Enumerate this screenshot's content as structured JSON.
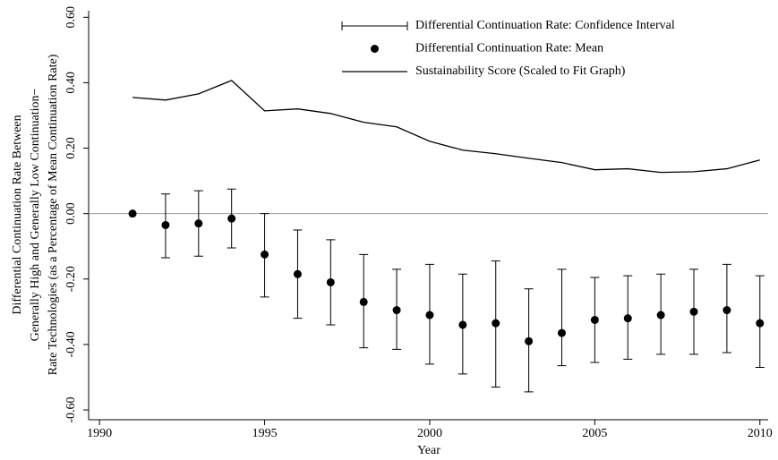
{
  "chart_data": {
    "type": "errorbar",
    "x_label": "Year",
    "y_label": [
      "Differential Continuation Rate Between",
      "Generally High and Generally Low Continuation−",
      "Rate Technologies (as a Percentage of Mean Continuation Rate)"
    ],
    "x": [
      1991,
      1992,
      1993,
      1994,
      1995,
      1996,
      1997,
      1998,
      1999,
      2000,
      2001,
      2002,
      2003,
      2004,
      2005,
      2006,
      2007,
      2008,
      2009,
      2010
    ],
    "xlim": [
      1989.67,
      2010.25
    ],
    "xticks": [
      1990,
      1995,
      2000,
      2005,
      2010
    ],
    "ylim": [
      -0.63,
      0.62
    ],
    "yticks": [
      {
        "value": -0.6,
        "label": "-0.60"
      },
      {
        "value": -0.4,
        "label": "-0.40"
      },
      {
        "value": -0.2,
        "label": "-0.20"
      },
      {
        "value": 0,
        "label": "0.00"
      },
      {
        "value": 0.2,
        "label": "0.20"
      },
      {
        "value": 0.4,
        "label": "0.40"
      },
      {
        "value": 0.6,
        "label": "0.60"
      }
    ],
    "reference_line": 0,
    "reference_color": "#999999",
    "series": [
      {
        "name": "Differential Continuation Rate: Confidence Interval",
        "type": "errorbar",
        "color": "#000000",
        "lower": [
          null,
          -0.135,
          -0.13,
          -0.105,
          -0.255,
          -0.32,
          -0.34,
          -0.41,
          -0.415,
          -0.46,
          -0.49,
          -0.53,
          -0.545,
          -0.465,
          -0.455,
          -0.445,
          -0.43,
          -0.43,
          -0.425,
          -0.47
        ],
        "upper": [
          null,
          0.06,
          0.07,
          0.075,
          0.0,
          -0.05,
          -0.08,
          -0.125,
          -0.17,
          -0.155,
          -0.185,
          -0.145,
          -0.23,
          -0.17,
          -0.195,
          -0.19,
          -0.185,
          -0.17,
          -0.155,
          -0.19
        ]
      },
      {
        "name": "Differential Continuation Rate: Mean",
        "type": "scatter",
        "color": "#000000",
        "values": [
          0.0,
          -0.035,
          -0.03,
          -0.015,
          -0.125,
          -0.185,
          -0.21,
          -0.27,
          -0.295,
          -0.31,
          -0.34,
          -0.335,
          -0.39,
          -0.365,
          -0.325,
          -0.32,
          -0.31,
          -0.3,
          -0.295,
          -0.335
        ]
      },
      {
        "name": "Sustainability Score (Scaled to Fit Graph)",
        "type": "line",
        "color": "#000000",
        "values": [
          0.355,
          0.347,
          0.366,
          0.407,
          0.314,
          0.32,
          0.306,
          0.279,
          0.265,
          0.221,
          0.194,
          0.183,
          0.169,
          0.156,
          0.134,
          0.137,
          0.126,
          0.128,
          0.137,
          0.164
        ]
      }
    ]
  }
}
